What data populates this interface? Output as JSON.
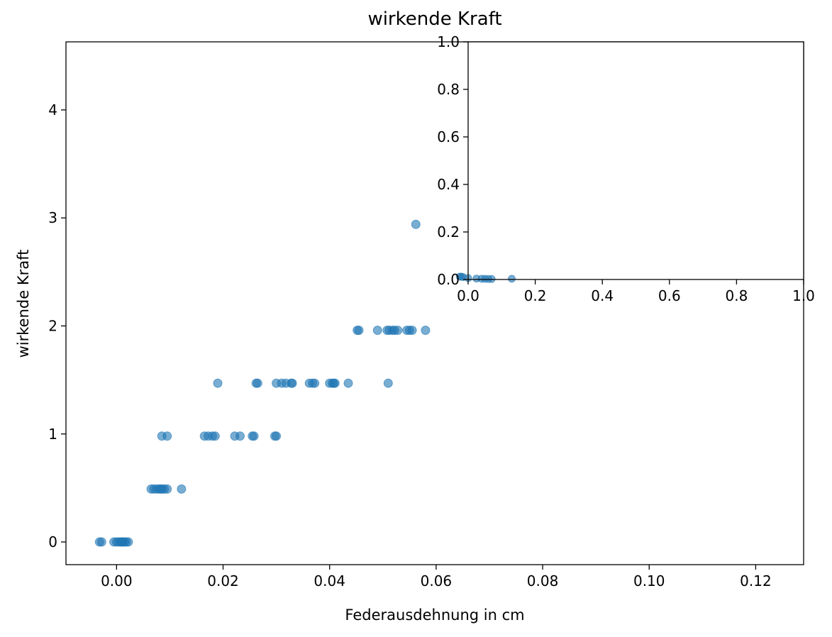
{
  "chart_data": [
    {
      "type": "scatter",
      "title": "wirkende Kraft",
      "xlabel": "Federausdehnung in cm",
      "ylabel": "wirkende Kraft",
      "xlim": [
        -0.0095,
        0.129
      ],
      "ylim": [
        -0.21,
        4.63
      ],
      "xticks": [
        0.0,
        0.02,
        0.04,
        0.06,
        0.08,
        0.1,
        0.12
      ],
      "xtick_labels": [
        "0.00",
        "0.02",
        "0.04",
        "0.06",
        "0.08",
        "0.10",
        "0.12"
      ],
      "yticks": [
        0,
        1,
        2,
        3,
        4
      ],
      "ytick_labels": [
        "0",
        "1",
        "2",
        "3",
        "4"
      ],
      "grid": false,
      "marker_color": "#1f77b4",
      "series": [
        {
          "x": [
            -0.0032,
            -0.0028,
            -0.0005,
            0.0,
            0.0004,
            0.0008,
            0.001,
            0.0012,
            0.0015,
            0.0018,
            0.0022,
            0.0065,
            0.007,
            0.0075,
            0.008,
            0.0083,
            0.0086,
            0.009,
            0.0095,
            0.0122,
            0.0085,
            0.0095,
            0.0165,
            0.0172,
            0.018,
            0.0185,
            0.0222,
            0.0232,
            0.0255,
            0.0258,
            0.0297,
            0.03,
            0.019,
            0.0262,
            0.0265,
            0.03,
            0.031,
            0.0318,
            0.0328,
            0.033,
            0.0362,
            0.0368,
            0.0372,
            0.04,
            0.0405,
            0.0408,
            0.041,
            0.0435,
            0.051,
            0.0452,
            0.0455,
            0.049,
            0.0508,
            0.0512,
            0.0518,
            0.0522,
            0.0528,
            0.0545,
            0.055,
            0.0555,
            0.058,
            0.0562
          ],
          "y": [
            0.0,
            0.0,
            0.0,
            0.0,
            0.0,
            0.0,
            0.0,
            0.0,
            0.0,
            0.0,
            0.0,
            0.49,
            0.49,
            0.49,
            0.49,
            0.49,
            0.49,
            0.49,
            0.49,
            0.49,
            0.98,
            0.98,
            0.98,
            0.98,
            0.98,
            0.98,
            0.98,
            0.98,
            0.98,
            0.98,
            0.98,
            0.98,
            1.47,
            1.47,
            1.47,
            1.47,
            1.47,
            1.47,
            1.47,
            1.47,
            1.47,
            1.47,
            1.47,
            1.47,
            1.47,
            1.47,
            1.47,
            1.47,
            1.47,
            1.96,
            1.96,
            1.96,
            1.96,
            1.96,
            1.96,
            1.96,
            1.96,
            1.96,
            1.96,
            1.96,
            1.96,
            2.94
          ]
        }
      ]
    },
    {
      "type": "scatter",
      "xlim": [
        0.0,
        1.0
      ],
      "ylim": [
        0.0,
        1.0
      ],
      "xticks": [
        0.0,
        0.2,
        0.4,
        0.6,
        0.8,
        1.0
      ],
      "xtick_labels": [
        "0.0",
        "0.2",
        "0.4",
        "0.6",
        "0.8",
        "1.0"
      ],
      "yticks": [
        0.0,
        0.2,
        0.4,
        0.6,
        0.8,
        1.0
      ],
      "ytick_labels": [
        "0.0",
        "0.2",
        "0.4",
        "0.6",
        "0.8",
        "1.0"
      ],
      "grid": false,
      "legend": "none",
      "series": [
        {
          "x": [
            -0.025,
            -0.02,
            -0.015,
            0.0,
            0.025,
            0.04,
            0.05,
            0.06,
            0.07,
            0.13
          ],
          "y": [
            0.012,
            0.012,
            0.01,
            0.006,
            0.004,
            0.003,
            0.003,
            0.002,
            0.002,
            0.003
          ]
        }
      ]
    }
  ]
}
